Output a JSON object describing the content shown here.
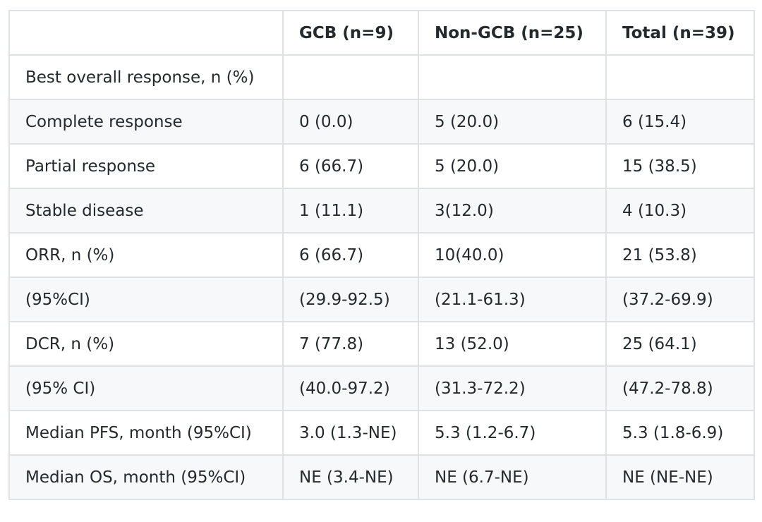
{
  "table": {
    "header": [
      "GCB (n=9)",
      "Non-GCB (n=25)",
      "Total (n=39)"
    ],
    "rows": [
      [
        "Best overall response, n (%)"
      ],
      [
        "Complete response",
        "0 (0.0)",
        "5 (20.0)",
        "6 (15.4)"
      ],
      [
        "Partial response",
        "6 (66.7)",
        "5 (20.0)",
        "15 (38.5)"
      ],
      [
        "Stable disease",
        "1 (11.1)",
        "3(12.0)",
        "4 (10.3)"
      ],
      [
        "ORR, n (%)",
        "6 (66.7)",
        "10(40.0)",
        "21 (53.8)"
      ],
      [
        "(95%CI)",
        "(29.9-92.5)",
        "(21.1-61.3)",
        "(37.2-69.9)"
      ],
      [
        "DCR, n (%)",
        "7 (77.8)",
        "13 (52.0)",
        "25 (64.1)"
      ],
      [
        "(95% CI)",
        "(40.0-97.2)",
        "(31.3-72.2)",
        "(47.2-78.8)"
      ],
      [
        "Median PFS, month (95%CI)",
        "3.0 (1.3-NE)",
        "5.3 (1.2-6.7)",
        "5.3 (1.8-6.9)"
      ],
      [
        "Median OS, month (95%CI)",
        "NE (3.4-NE)",
        "NE (6.7-NE)",
        "NE (NE-NE)"
      ]
    ]
  }
}
